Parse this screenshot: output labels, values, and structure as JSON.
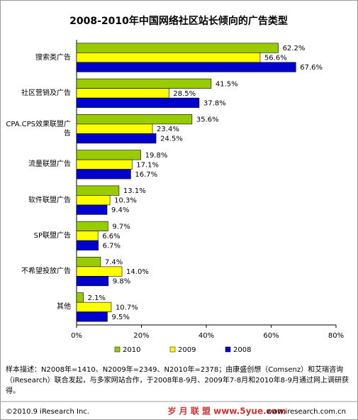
{
  "chart_data": {
    "type": "bar",
    "orientation": "horizontal",
    "title": "2008-2010年中国网络社区站长倾向的广告类型",
    "categories": [
      "搜索类广告",
      "社区营销及广告",
      "CPA.CPS效果联盟广告",
      "流量联盟广告",
      "软件联盟广告",
      "SP联盟广告",
      "不希望投放广告",
      "其他"
    ],
    "series": [
      {
        "name": "2010",
        "color": "#99cc00",
        "values": [
          62.2,
          41.5,
          35.6,
          19.8,
          13.1,
          9.7,
          7.4,
          2.1
        ],
        "value_labels": [
          "62.2%",
          "41.5%",
          "35.6%",
          "19.8%",
          "13.1%",
          "9.7%",
          "7.4%",
          "2.1%"
        ]
      },
      {
        "name": "2009",
        "color": "#ffff00",
        "values": [
          56.6,
          28.5,
          23.4,
          17.1,
          10.3,
          6.6,
          14.0,
          10.7
        ],
        "value_labels": [
          "56.6%",
          "28.5%",
          "23.4%",
          "17.1%",
          "10.3%",
          "6.6%",
          "14.0%",
          "10.7%"
        ]
      },
      {
        "name": "2008",
        "color": "#0000cc",
        "values": [
          67.6,
          37.8,
          24.5,
          16.7,
          9.4,
          6.7,
          9.8,
          9.5
        ],
        "value_labels": [
          "67.6%",
          "37.8%",
          "24.5%",
          "16.7%",
          "9.4%",
          "6.7%",
          "9.8%",
          "9.5%"
        ]
      }
    ],
    "xlim": [
      0,
      80
    ],
    "xticks": [
      {
        "value": 0,
        "label": "0%"
      },
      {
        "value": 20,
        "label": "20%"
      },
      {
        "value": 40,
        "label": "40%"
      },
      {
        "value": 60,
        "label": "60%"
      },
      {
        "value": 80,
        "label": "80%"
      }
    ],
    "grid": false,
    "legend": "bottom"
  },
  "note": "样本描述：N2008年=1410、N2009年=2349、N2010年=2378；由康盛创想（Comsenz）和艾瑞咨询（iResearch）联合发起，与多家网站合作，于2008年8-9月、2009年7-8月和2010年8-9月通过网上调研获得。",
  "footer": {
    "copyright": "©2010.9 iResearch Inc.",
    "watermark": "岁 月 联 盟 www.5yue.com",
    "website": "www.iresearch.com.cn"
  }
}
